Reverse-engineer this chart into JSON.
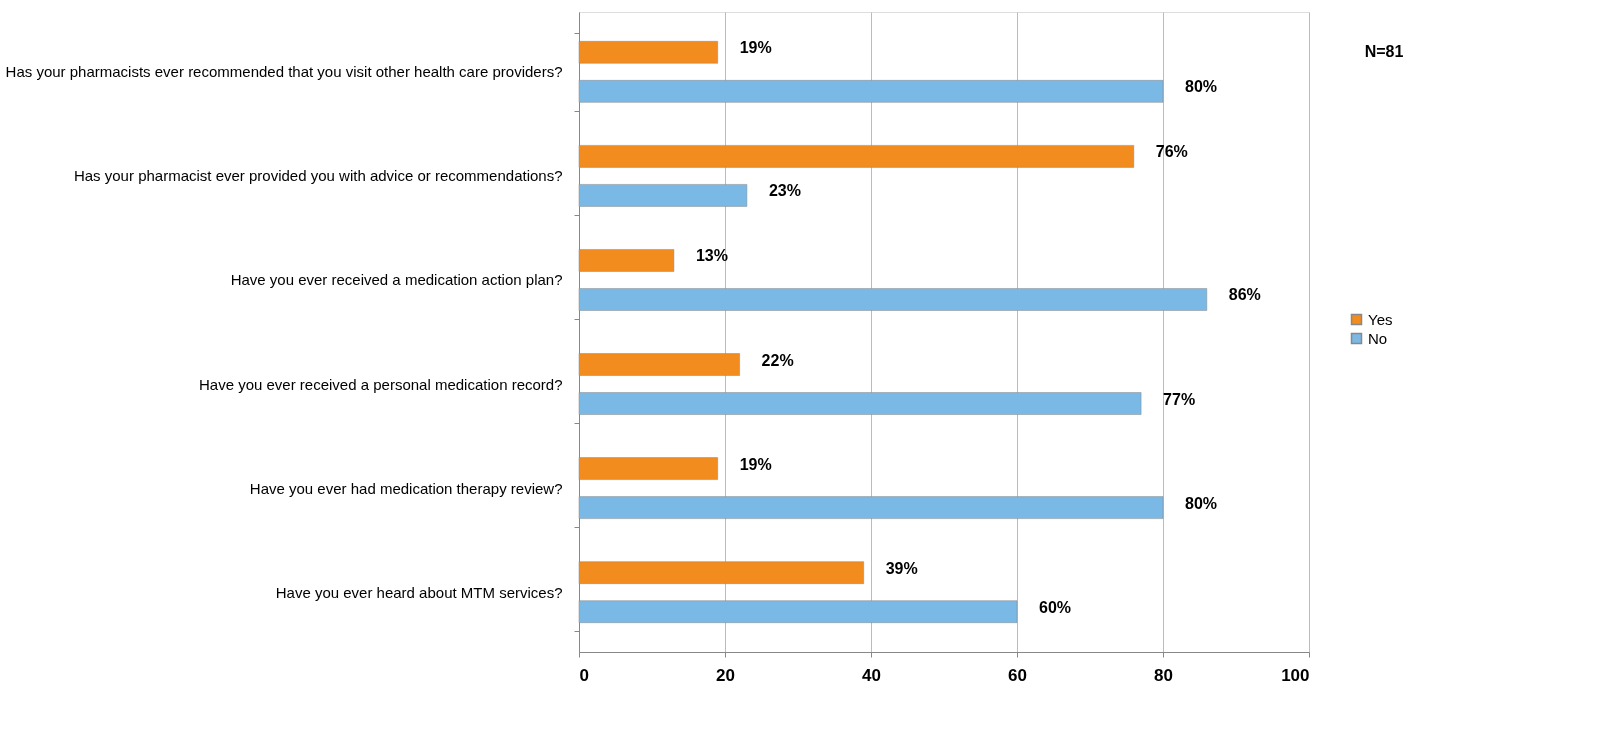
{
  "chart_data": {
    "type": "bar",
    "orientation": "horizontal",
    "categories": [
      "Has your pharmacists ever recommended that you visit other health care providers?",
      "Has your pharmacist ever provided you with advice or recommendations?",
      "Have you ever received a medication action plan?",
      "Have you ever received a personal medication record?",
      "Have you ever had  medication therapy review?",
      "Have you ever heard about MTM services?"
    ],
    "series": [
      {
        "name": "Yes",
        "color": "#f28c1e",
        "values": [
          19,
          76,
          13,
          22,
          19,
          39
        ],
        "value_labels": [
          "19%",
          "76%",
          "13%",
          "22%",
          "19%",
          "39%"
        ]
      },
      {
        "name": "No",
        "color": "#7ab8e6",
        "values": [
          80,
          23,
          86,
          77,
          80,
          60
        ],
        "value_labels": [
          "80%",
          "23%",
          "86%",
          "77%",
          "80%",
          "60%"
        ]
      }
    ],
    "xlim": [
      0,
      100
    ],
    "xticks": [
      0,
      20,
      40,
      60,
      80,
      100
    ],
    "grid": "x",
    "legend": "right",
    "annotations": [
      "N=81"
    ]
  }
}
